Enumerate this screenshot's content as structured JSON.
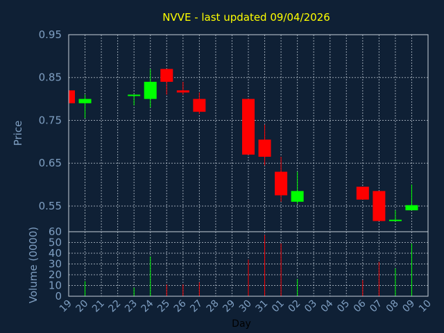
{
  "chart_data": {
    "type": "candlestick",
    "title": "NVVE - last updated 09/04/2026",
    "xlabel": "Day",
    "price_panel": {
      "ylabel": "Price",
      "ylim": [
        0.49,
        0.95
      ],
      "yticks": [
        "0.95",
        "0.85",
        "0.75",
        "0.65",
        "0.55"
      ]
    },
    "volume_panel": {
      "ylabel": "Volume (0000)",
      "ylim": [
        0,
        60
      ],
      "yticks": [
        "60",
        "50",
        "40",
        "30",
        "20",
        "10",
        "0"
      ]
    },
    "x_ticks": [
      "19",
      "20",
      "21",
      "22",
      "23",
      "24",
      "25",
      "26",
      "27",
      "28",
      "29",
      "30",
      "31",
      "01",
      "02",
      "03",
      "04",
      "05",
      "06",
      "07",
      "08",
      "09",
      "10"
    ],
    "colors": {
      "up": "#00ff00",
      "down": "#ff0000"
    },
    "grid": true,
    "candles": [
      {
        "day": "19",
        "open": 0.82,
        "high": 0.82,
        "low": 0.79,
        "close": 0.79,
        "volume": 0
      },
      {
        "day": "20",
        "open": 0.79,
        "high": 0.81,
        "low": 0.755,
        "close": 0.8,
        "volume": 14
      },
      {
        "day": "23",
        "open": 0.807,
        "high": 0.81,
        "low": 0.785,
        "close": 0.81,
        "volume": 8
      },
      {
        "day": "24",
        "open": 0.8,
        "high": 0.87,
        "low": 0.78,
        "close": 0.84,
        "volume": 37
      },
      {
        "day": "25",
        "open": 0.87,
        "high": 0.87,
        "low": 0.81,
        "close": 0.84,
        "volume": 11
      },
      {
        "day": "26",
        "open": 0.82,
        "high": 0.84,
        "low": 0.81,
        "close": 0.815,
        "volume": 11
      },
      {
        "day": "27",
        "open": 0.8,
        "high": 0.815,
        "low": 0.765,
        "close": 0.77,
        "volume": 13
      },
      {
        "day": "30",
        "open": 0.8,
        "high": 0.8,
        "low": 0.67,
        "close": 0.67,
        "volume": 34
      },
      {
        "day": "31",
        "open": 0.705,
        "high": 0.74,
        "low": 0.645,
        "close": 0.665,
        "volume": 57
      },
      {
        "day": "01",
        "open": 0.63,
        "high": 0.665,
        "low": 0.56,
        "close": 0.575,
        "volume": 49
      },
      {
        "day": "02",
        "open": 0.56,
        "high": 0.63,
        "low": 0.555,
        "close": 0.585,
        "volume": 16
      },
      {
        "day": "06",
        "open": 0.595,
        "high": 0.595,
        "low": 0.565,
        "close": 0.565,
        "volume": 15
      },
      {
        "day": "07",
        "open": 0.585,
        "high": 0.585,
        "low": 0.515,
        "close": 0.515,
        "volume": 32
      },
      {
        "day": "08",
        "open": 0.515,
        "high": 0.54,
        "low": 0.515,
        "close": 0.518,
        "volume": 26
      },
      {
        "day": "09",
        "open": 0.54,
        "high": 0.6,
        "low": 0.54,
        "close": 0.552,
        "volume": 49
      }
    ]
  }
}
